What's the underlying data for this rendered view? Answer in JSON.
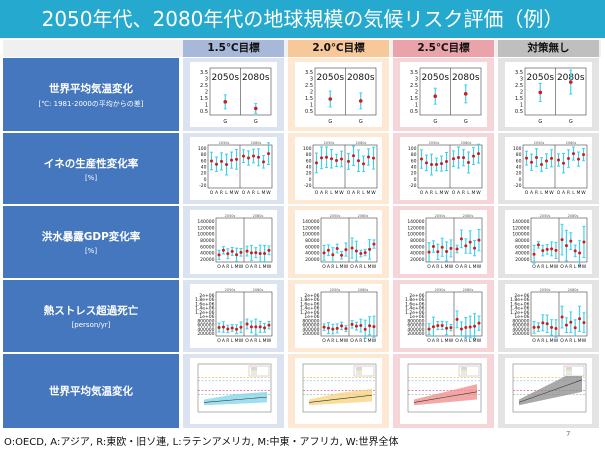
{
  "title": "2050年代、2080年代の地球規模の気候リスク評価（例）",
  "columns": [
    {
      "label": "1.5℃目標",
      "header_color": "#a8b8d8",
      "cell_color": "#dbe3f0"
    },
    {
      "label": "2.0℃目標",
      "header_color": "#f7c89a",
      "cell_color": "#fde8d3"
    },
    {
      "label": "2.5℃目標",
      "header_color": "#eaa3aa",
      "cell_color": "#f6d5d8"
    },
    {
      "label": "対策無し",
      "header_color": "#bfbfbf",
      "cell_color": "#e3e3e3"
    }
  ],
  "rows": [
    {
      "label": "世界平均気温変化",
      "sub": "[℃: 1981-2000の平均からの差]"
    },
    {
      "label": "イネの生産性変化率",
      "sub": "[%]"
    },
    {
      "label": "洪水暴露GDP変化率",
      "sub": "[%]"
    },
    {
      "label": "熱ストレス超過死亡",
      "sub": "[person/yr]"
    },
    {
      "label": "世界平均気温変化",
      "sub": ""
    }
  ],
  "panel_text": {
    "period1": "2050s",
    "period2": "2080s",
    "temp_ticks": [
      "3.5",
      "3",
      "2.5",
      "2",
      "1.5",
      "1",
      "0.5"
    ],
    "g_label": "G",
    "rice_ticks": [
      "100",
      "80",
      "60",
      "40",
      "20",
      "0",
      "-20"
    ],
    "region_labels": [
      "O",
      "A",
      "R",
      "L",
      "M",
      "W"
    ],
    "flood_ticks": [
      "140000",
      "120000",
      "100000",
      "80000",
      "60000",
      "40000",
      "20000"
    ],
    "heat_ticks": [
      "2e+06",
      "1.8e+06",
      "1.6e+06",
      "1.4e+06",
      "1.2e+06",
      "1e+06",
      "800000",
      "600000",
      "400000",
      "200000"
    ],
    "small_period1": "2050s",
    "small_period2": "2080s"
  },
  "colors": {
    "title_bar": "#26a9ce",
    "row_label_bg": "#4577be",
    "point": "#d41a1a",
    "range": "#3fd2ec",
    "temp_band_1_5": "#7fd3ea",
    "temp_band_2_0": "#f5d27a",
    "temp_band_2_5": "#ef8a8a",
    "temp_band_none": "#8c8c8c"
  },
  "footer": "O:OECD, A:アジア, R:東欧・旧ソ連, L:ラテンアメリカ, M:中東・アフリカ, W:世界全体",
  "page_number": "7"
}
